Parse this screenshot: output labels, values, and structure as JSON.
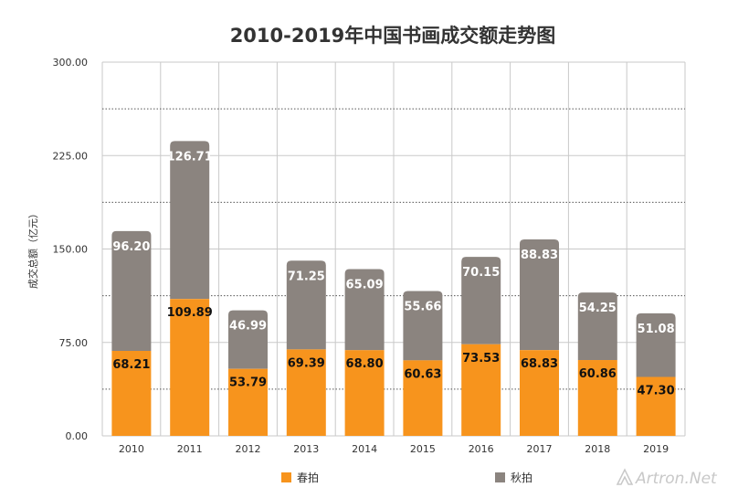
{
  "chart_data": {
    "type": "bar",
    "stacked": true,
    "title": "2010-2019年中国书画成交额走势图",
    "ylabel": "成交总额（亿元）",
    "xlabel": "",
    "ylim": [
      0,
      300
    ],
    "yticks": [
      "0.00",
      "75.00",
      "150.00",
      "225.00",
      "300.00"
    ],
    "categories": [
      "2010",
      "2011",
      "2012",
      "2013",
      "2014",
      "2015",
      "2016",
      "2017",
      "2018",
      "2019"
    ],
    "series": [
      {
        "name": "春拍",
        "color": "#f7941d",
        "values": [
          68.21,
          109.89,
          53.79,
          69.39,
          68.8,
          60.63,
          73.53,
          68.83,
          60.86,
          47.3
        ],
        "labels": [
          "68.21",
          "109.89",
          "53.79",
          "69.39",
          "68.80",
          "60.63",
          "73.53",
          "68.83",
          "60.86",
          "47.30"
        ]
      },
      {
        "name": "秋拍",
        "color": "#8b847f",
        "values": [
          96.2,
          126.71,
          46.99,
          71.25,
          65.09,
          55.66,
          70.15,
          88.83,
          54.25,
          51.08
        ],
        "labels": [
          "96.20",
          "126.71",
          "46.99",
          "71.25",
          "65.09",
          "55.66",
          "70.15",
          "88.83",
          "54.25",
          "51.08"
        ]
      }
    ],
    "grid": true,
    "legend": "bottom"
  },
  "watermark": {
    "text": "Artron.Net",
    "icon": "artron-logo-icon"
  }
}
